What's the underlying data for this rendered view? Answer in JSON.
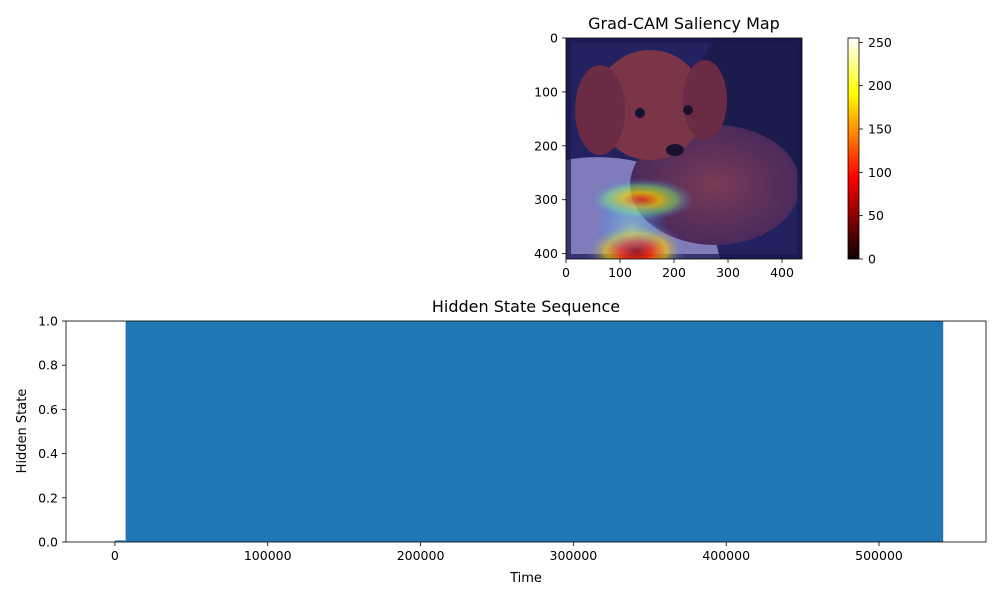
{
  "chart_data": [
    {
      "type": "heatmap",
      "title": "Grad-CAM Saliency Map",
      "image_width": 437,
      "image_height": 410,
      "xticks": [
        0,
        100,
        200,
        300,
        400
      ],
      "yticks": [
        0,
        100,
        200,
        300,
        400
      ],
      "colormap": "hot",
      "colorbar": {
        "min": 0,
        "max": 255,
        "ticks": [
          0,
          50,
          100,
          150,
          200,
          250
        ]
      },
      "hotspots": [
        {
          "x": 140,
          "y": 300,
          "w": 100,
          "h": 40,
          "intensity": 0.75
        },
        {
          "x": 130,
          "y": 395,
          "w": 95,
          "h": 55,
          "intensity": 1.0
        },
        {
          "x": 120,
          "y": 350,
          "w": 70,
          "h": 60,
          "intensity": 0.45
        }
      ]
    },
    {
      "type": "area",
      "title": "Hidden State Sequence",
      "xlabel": "Time",
      "ylabel": "Hidden State",
      "xlim": [
        -32000,
        570000
      ],
      "ylim": [
        0,
        1
      ],
      "xticks": [
        0,
        100000,
        200000,
        300000,
        400000,
        500000
      ],
      "yticks": [
        0.0,
        0.2,
        0.4,
        0.6,
        0.8,
        1.0
      ],
      "ytick_labels": [
        "0.0",
        "0.2",
        "0.4",
        "0.6",
        "0.8",
        "1.0"
      ],
      "series_color": "#1f77b4",
      "segments": [
        {
          "x": [
            0,
            7000
          ],
          "y": 0
        },
        {
          "x": [
            7000,
            542000
          ],
          "y": 1
        }
      ]
    }
  ]
}
